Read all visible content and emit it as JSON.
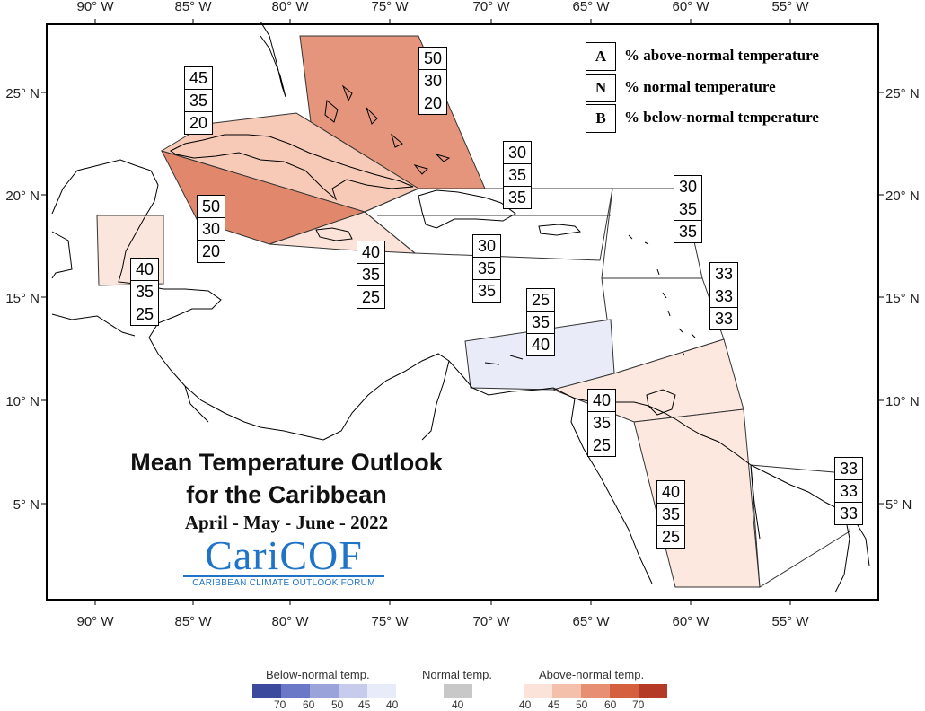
{
  "axes": {
    "lon_labels": [
      "90° W",
      "85° W",
      "80° W",
      "75° W",
      "70° W",
      "65° W",
      "60° W",
      "55° W"
    ],
    "lat_labels": [
      "25° N",
      "20° N",
      "15° N",
      "10° N",
      "5° N"
    ]
  },
  "key": [
    {
      "letter": "A",
      "text": "% above-normal temperature"
    },
    {
      "letter": "N",
      "text": "% normal temperature"
    },
    {
      "letter": "B",
      "text": "% below-normal temperature"
    }
  ],
  "title": {
    "line1": "Mean Temperature Outlook",
    "line2": "for the Caribbean",
    "season": "April - May - June - 2022"
  },
  "logo": {
    "word": "CariCOF",
    "subtitle": "CARIBBEAN CLIMATE OUTLOOK FORUM"
  },
  "forecast_boxes": [
    {
      "region": "bahamas",
      "values": [
        "50",
        "30",
        "20"
      ]
    },
    {
      "region": "cuba",
      "values": [
        "45",
        "35",
        "20"
      ]
    },
    {
      "region": "cayman",
      "values": [
        "50",
        "30",
        "20"
      ]
    },
    {
      "region": "jamaica",
      "values": [
        "40",
        "35",
        "25"
      ]
    },
    {
      "region": "belize",
      "values": [
        "40",
        "35",
        "25"
      ]
    },
    {
      "region": "hispaniola",
      "values": [
        "30",
        "35",
        "35"
      ]
    },
    {
      "region": "puerto-rico-sea",
      "values": [
        "30",
        "35",
        "35"
      ]
    },
    {
      "region": "leeward-islands",
      "values": [
        "30",
        "35",
        "35"
      ]
    },
    {
      "region": "windward-islands",
      "values": [
        "33",
        "33",
        "33"
      ]
    },
    {
      "region": "abc-islands",
      "values": [
        "25",
        "35",
        "40"
      ]
    },
    {
      "region": "trinidad",
      "values": [
        "40",
        "35",
        "25"
      ]
    },
    {
      "region": "guyana",
      "values": [
        "40",
        "35",
        "25"
      ]
    },
    {
      "region": "french-guiana",
      "values": [
        "33",
        "33",
        "33"
      ]
    }
  ],
  "legend": {
    "below": {
      "title": "Below-normal temp.",
      "colors": [
        "#3b4a9c",
        "#6a78c7",
        "#9ba3db",
        "#c7cbec",
        "#e8ebf8"
      ],
      "ticks": [
        "70",
        "60",
        "50",
        "45",
        "40"
      ]
    },
    "normal": {
      "title": "Normal temp.",
      "colors": [
        "#c8c8c8"
      ],
      "ticks": [
        "40"
      ]
    },
    "above": {
      "title": "Above-normal temp.",
      "colors": [
        "#fbe3da",
        "#f4c0ab",
        "#e78f72",
        "#d5603f",
        "#b43a25"
      ],
      "ticks": [
        "40",
        "45",
        "50",
        "60",
        "70"
      ]
    }
  }
}
